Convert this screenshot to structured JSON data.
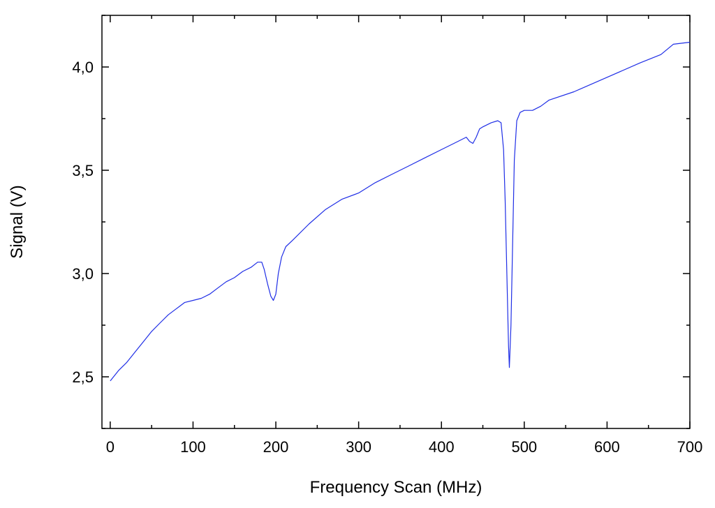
{
  "chart_data": {
    "type": "line",
    "title": "",
    "xlabel": "Frequency Scan (MHz)",
    "ylabel": "Signal (V)",
    "xlim": [
      -10,
      700
    ],
    "ylim": [
      2.25,
      4.25
    ],
    "grid": false,
    "legend": "none",
    "x_ticks": [
      0,
      100,
      200,
      300,
      400,
      500,
      600,
      700
    ],
    "x_tick_labels": [
      "0",
      "100",
      "200",
      "300",
      "400",
      "500",
      "600",
      "700"
    ],
    "y_ticks": [
      2.5,
      3.0,
      3.5,
      4.0
    ],
    "y_tick_labels": [
      "2,5",
      "3,0",
      "3,5",
      "4,0"
    ],
    "series": [
      {
        "color": "#1f2ee6",
        "x": [
          0,
          10,
          20,
          30,
          40,
          50,
          60,
          70,
          80,
          90,
          100,
          110,
          120,
          130,
          140,
          150,
          160,
          170,
          178,
          183,
          186,
          190,
          194,
          197,
          200,
          203,
          207,
          212,
          220,
          240,
          260,
          280,
          300,
          320,
          340,
          360,
          380,
          400,
          420,
          430,
          434,
          438,
          442,
          446,
          450,
          460,
          468,
          472,
          475,
          477,
          479,
          481,
          482,
          484,
          486,
          488,
          491,
          495,
          500,
          510,
          520,
          530,
          560,
          600,
          640,
          665,
          680,
          700
        ],
        "y": [
          2.48,
          2.53,
          2.57,
          2.62,
          2.67,
          2.72,
          2.76,
          2.8,
          2.83,
          2.86,
          2.87,
          2.88,
          2.9,
          2.93,
          2.96,
          2.98,
          3.01,
          3.03,
          3.055,
          3.055,
          3.02,
          2.95,
          2.89,
          2.87,
          2.9,
          3.0,
          3.08,
          3.13,
          3.16,
          3.24,
          3.31,
          3.36,
          3.39,
          3.44,
          3.48,
          3.52,
          3.56,
          3.6,
          3.64,
          3.66,
          3.64,
          3.63,
          3.66,
          3.7,
          3.71,
          3.73,
          3.74,
          3.73,
          3.6,
          3.35,
          3.0,
          2.65,
          2.545,
          2.75,
          3.15,
          3.55,
          3.74,
          3.78,
          3.79,
          3.79,
          3.81,
          3.84,
          3.88,
          3.95,
          4.02,
          4.06,
          4.11,
          4.12
        ]
      }
    ]
  }
}
